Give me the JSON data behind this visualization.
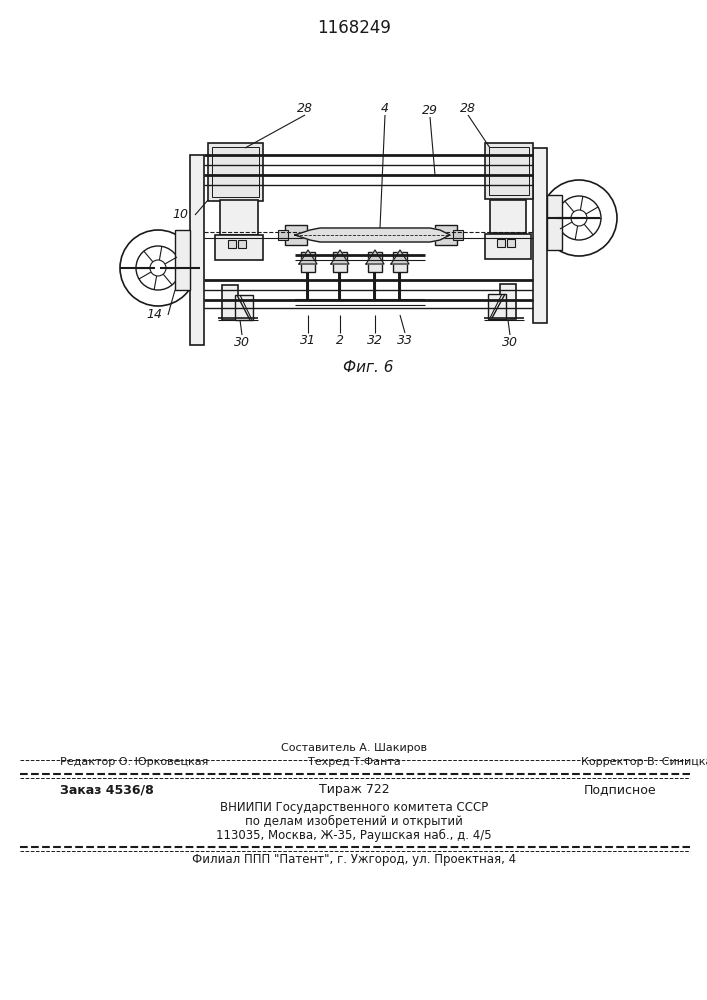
{
  "patent_number": "1168249",
  "fig_label": "Фиг. 6",
  "background_color": "#ffffff",
  "line_color": "#1a1a1a",
  "footer": {
    "editor": "Редактор О. Юрковецкая",
    "composer": "Составитель А. Шакиров",
    "techred": "Техред Т.Фанта",
    "corrector": "Корректор В. Синицкая",
    "order": "Заказ 4536/8",
    "tirazh": "Тираж 722",
    "podpisnoe": "Подписное",
    "vniip1": "ВНИИПИ Государственного комитета СССР",
    "vniip2": "по делам изобретений и открытий",
    "vniip3": "113035, Москва, Ж-35, Раушская наб., д. 4/5",
    "filial": "Филиал ППП \"Патент\", г. Ужгород, ул. Проектная, 4"
  }
}
